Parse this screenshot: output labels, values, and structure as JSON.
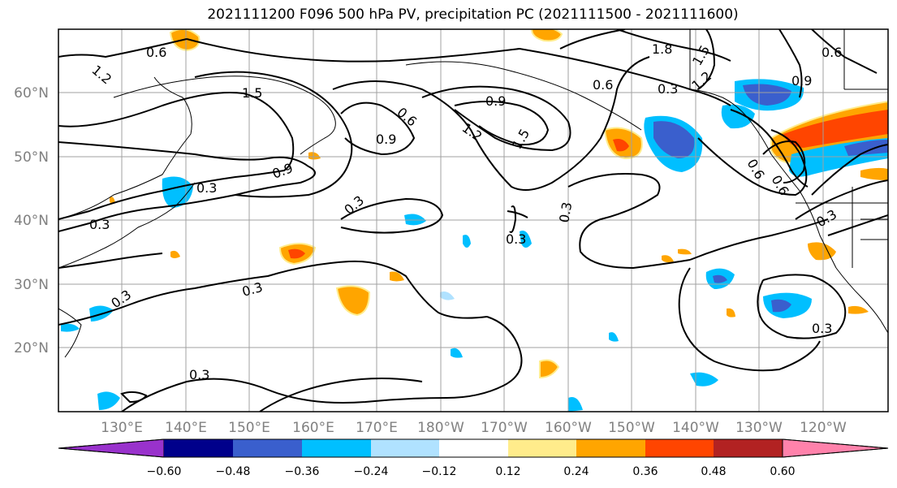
{
  "title": "2021111200 F096 500 hPa PV, precipitation PC (2021111500 - 2021111600)",
  "lat_labels": [
    "60°N",
    "50°N",
    "40°N",
    "30°N",
    "20°N"
  ],
  "lon_labels": [
    "130°E",
    "140°E",
    "150°E",
    "160°E",
    "170°E",
    "180°W",
    "170°W",
    "160°W",
    "150°W",
    "140°W",
    "130°W",
    "120°W"
  ],
  "contour_labels": [
    "1.2",
    "0.6",
    "1.8",
    "1.5",
    "0.6",
    "0.9",
    "1.2",
    "1.5",
    "0.9",
    "0.6",
    "0.3",
    "0.6",
    "0.9",
    "1.2",
    "1.5",
    "0.9",
    "0.3",
    "0.6",
    "0.6",
    "0.3",
    "0.3",
    "0.3",
    "0.3",
    "0.3",
    "0.3"
  ],
  "colorbar": {
    "colors": [
      "#9932cc",
      "#00008b",
      "#3a5fcd",
      "#00bfff",
      "#b0e2ff",
      "#ffffff",
      "#ffec8b",
      "#ffa500",
      "#ff4500",
      "#b22222",
      "#ff82ab"
    ],
    "ticks": [
      "−0.60",
      "−0.48",
      "−0.36",
      "−0.24",
      "−0.12",
      "0.12",
      "0.24",
      "0.36",
      "0.48",
      "0.60"
    ]
  }
}
